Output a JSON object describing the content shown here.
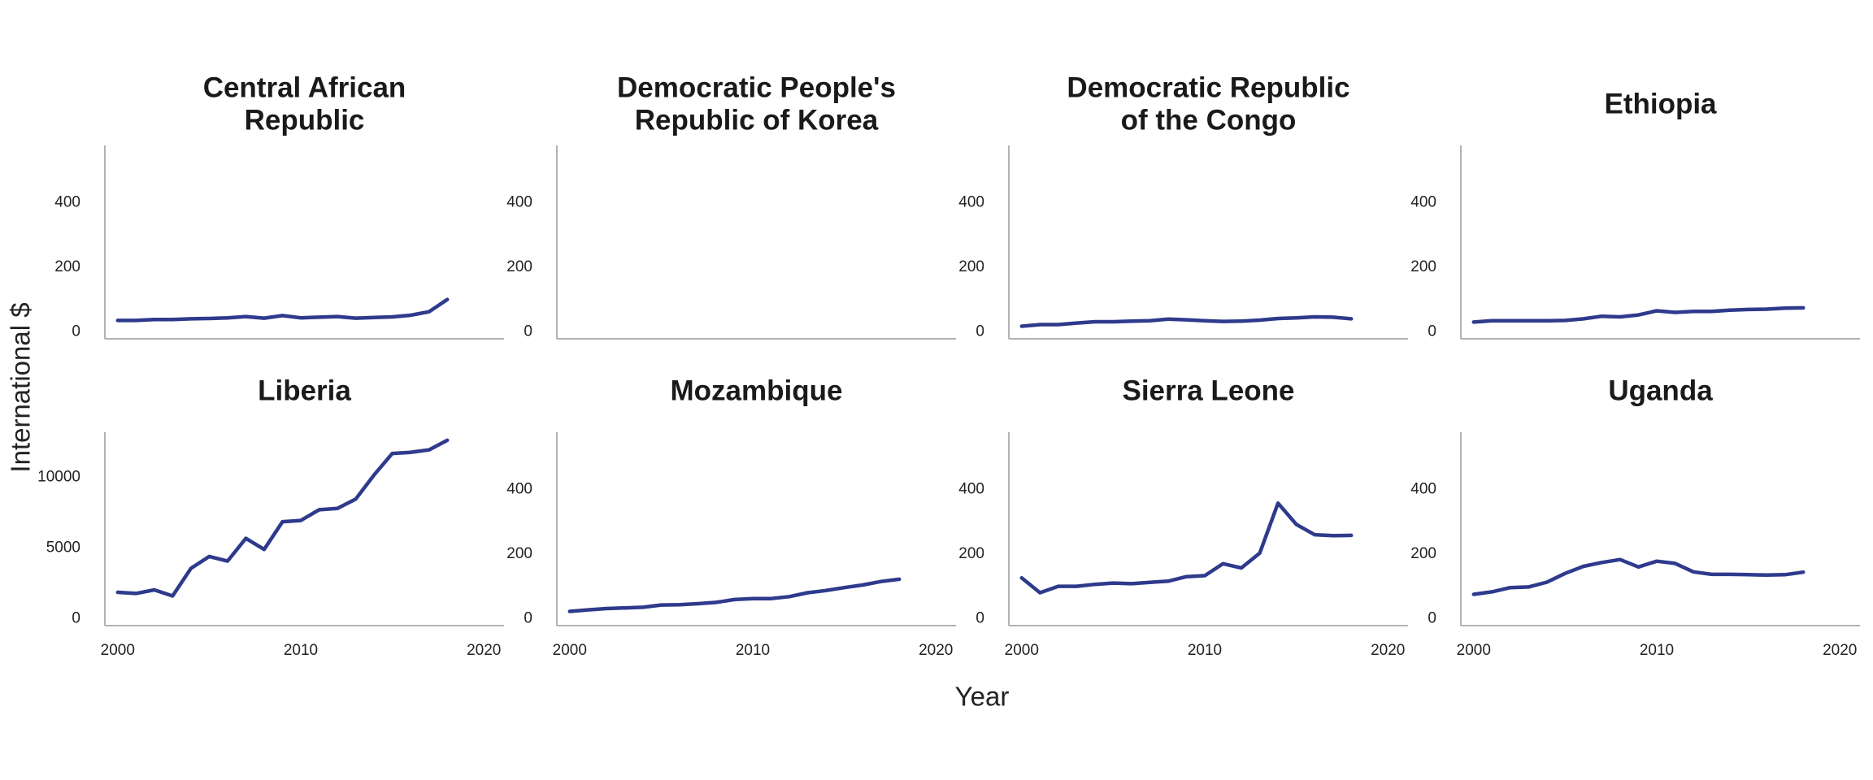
{
  "axis_labels": {
    "x": "Year",
    "y": "International $"
  },
  "chart_data": [
    {
      "type": "line",
      "title": [
        "Central African",
        "Republic"
      ],
      "color": "#2e3a8c",
      "x": [
        2000,
        2001,
        2002,
        2003,
        2004,
        2005,
        2006,
        2007,
        2008,
        2009,
        2010,
        2011,
        2012,
        2013,
        2014,
        2015,
        2016,
        2017,
        2018
      ],
      "values": [
        35,
        35,
        38,
        38,
        40,
        41,
        43,
        47,
        42,
        50,
        43,
        45,
        47,
        42,
        44,
        46,
        51,
        62,
        100
      ],
      "xlim": [
        1999.3,
        2021.1
      ],
      "ylim": [
        -22,
        578
      ],
      "yticks": [
        0,
        200,
        400
      ]
    },
    {
      "type": "line",
      "title": [
        "Democratic People's",
        "Republic of Korea"
      ],
      "color": "#2e3a8c",
      "x": [],
      "values": [],
      "xlim": [
        1999.3,
        2021.1
      ],
      "ylim": [
        -22,
        578
      ],
      "yticks": [
        0,
        200,
        400
      ]
    },
    {
      "type": "line",
      "title": [
        "Democratic Republic",
        "of the Congo"
      ],
      "color": "#2e3a8c",
      "x": [
        2000,
        2001,
        2002,
        2003,
        2004,
        2005,
        2006,
        2007,
        2008,
        2009,
        2010,
        2011,
        2012,
        2013,
        2014,
        2015,
        2016,
        2017,
        2018
      ],
      "values": [
        17,
        22,
        22,
        27,
        31,
        31,
        33,
        34,
        39,
        37,
        34,
        32,
        33,
        36,
        41,
        43,
        46,
        45,
        40
      ],
      "xlim": [
        1999.3,
        2021.1
      ],
      "ylim": [
        -22,
        578
      ],
      "yticks": [
        0,
        200,
        400
      ]
    },
    {
      "type": "line",
      "title": [
        "Ethiopia"
      ],
      "color": "#2e3a8c",
      "x": [
        2000,
        2001,
        2002,
        2003,
        2004,
        2005,
        2006,
        2007,
        2008,
        2009,
        2010,
        2011,
        2012,
        2013,
        2014,
        2015,
        2016,
        2017,
        2018
      ],
      "values": [
        30,
        34,
        34,
        34,
        34,
        35,
        40,
        48,
        46,
        52,
        65,
        60,
        63,
        63,
        67,
        69,
        70,
        73,
        74
      ],
      "xlim": [
        1999.3,
        2021.1
      ],
      "ylim": [
        -22,
        578
      ],
      "yticks": [
        0,
        200,
        400
      ]
    },
    {
      "type": "line",
      "title": [
        "Liberia"
      ],
      "color": "#2e3a8c",
      "x": [
        2000,
        2001,
        2002,
        2003,
        2004,
        2005,
        2006,
        2007,
        2008,
        2009,
        2010,
        2011,
        2012,
        2013,
        2014,
        2015,
        2016,
        2017,
        2018
      ],
      "values": [
        1860,
        1780,
        2030,
        1600,
        3560,
        4400,
        4070,
        5680,
        4900,
        6860,
        6950,
        7710,
        7800,
        8470,
        10170,
        11700,
        11780,
        11950,
        12630
      ],
      "xlim": [
        1999.3,
        2021.1
      ],
      "xticks": [
        2000,
        2010,
        2020
      ],
      "ylim": [
        -500,
        13200
      ],
      "yticks": [
        0,
        5000,
        10000
      ]
    },
    {
      "type": "line",
      "title": [
        "Mozambique"
      ],
      "color": "#2e3a8c",
      "x": [
        2000,
        2001,
        2002,
        2003,
        2004,
        2005,
        2006,
        2007,
        2008,
        2009,
        2010,
        2011,
        2012,
        2013,
        2014,
        2015,
        2016,
        2017,
        2018
      ],
      "values": [
        22,
        27,
        31,
        33,
        35,
        42,
        43,
        46,
        50,
        59,
        62,
        62,
        68,
        80,
        87,
        96,
        104,
        115,
        122
      ],
      "xlim": [
        1999.3,
        2021.1
      ],
      "xticks": [
        2000,
        2010,
        2020
      ],
      "ylim": [
        -22,
        578
      ],
      "yticks": [
        0,
        200,
        400
      ]
    },
    {
      "type": "line",
      "title": [
        "Sierra Leone"
      ],
      "color": "#2e3a8c",
      "x": [
        2000,
        2001,
        2002,
        2003,
        2004,
        2005,
        2006,
        2007,
        2008,
        2009,
        2010,
        2011,
        2012,
        2013,
        2014,
        2015,
        2016,
        2017,
        2018
      ],
      "values": [
        126,
        80,
        100,
        100,
        106,
        110,
        108,
        112,
        116,
        130,
        133,
        170,
        157,
        203,
        358,
        292,
        260,
        257,
        258
      ],
      "xlim": [
        1999.3,
        2021.1
      ],
      "xticks": [
        2000,
        2010,
        2020
      ],
      "ylim": [
        -22,
        578
      ],
      "yticks": [
        0,
        200,
        400
      ]
    },
    {
      "type": "line",
      "title": [
        "Uganda"
      ],
      "color": "#2e3a8c",
      "x": [
        2000,
        2001,
        2002,
        2003,
        2004,
        2005,
        2006,
        2007,
        2008,
        2009,
        2010,
        2011,
        2012,
        2013,
        2014,
        2015,
        2016,
        2017,
        2018
      ],
      "values": [
        75,
        83,
        96,
        98,
        113,
        140,
        162,
        174,
        183,
        160,
        178,
        171,
        145,
        137,
        137,
        136,
        135,
        136,
        144
      ],
      "xlim": [
        1999.3,
        2021.1
      ],
      "xticks": [
        2000,
        2010,
        2020
      ],
      "ylim": [
        -22,
        578
      ],
      "yticks": [
        0,
        200,
        400
      ]
    }
  ]
}
